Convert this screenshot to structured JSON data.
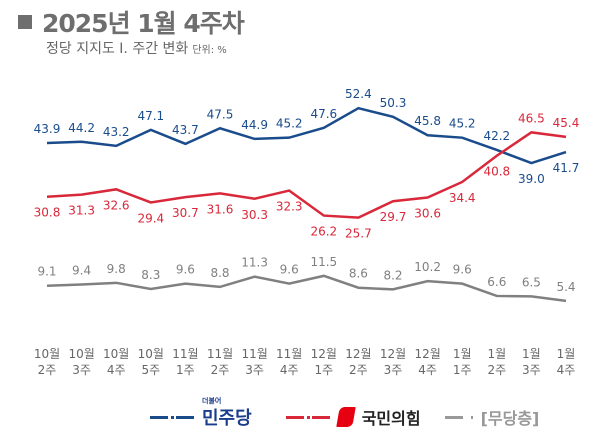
{
  "header": {
    "title": "2025년 1월 4주차",
    "subtitle": "정당 지지도 Ⅰ. 주간 변화",
    "unit": "단위: %"
  },
  "legend": {
    "minjoo": "민주당",
    "minjoo_prefix": "더불어",
    "ppp": "국민의힘",
    "none": "[무당층]"
  },
  "chart_data": {
    "type": "line",
    "title": "",
    "categories": [
      "10월\n2주",
      "10월\n3주",
      "10월\n4주",
      "10월\n5주",
      "11월\n1주",
      "11월\n2주",
      "11월\n3주",
      "11월\n4주",
      "12월\n1주",
      "12월\n2주",
      "12월\n3주",
      "12월\n4주",
      "1월\n1주",
      "1월\n2주",
      "1월\n3주",
      "1월\n4주"
    ],
    "series": [
      {
        "name": "더불어민주당",
        "color": "#1a4c8c",
        "values": [
          43.9,
          44.2,
          43.2,
          47.1,
          43.7,
          47.5,
          44.9,
          45.2,
          47.6,
          52.4,
          50.3,
          45.8,
          45.2,
          42.2,
          39.0,
          41.7
        ]
      },
      {
        "name": "국민의힘",
        "color": "#d8283a",
        "values": [
          30.8,
          31.3,
          32.6,
          29.4,
          30.7,
          31.6,
          30.3,
          32.3,
          26.2,
          25.7,
          29.7,
          30.6,
          34.4,
          40.8,
          46.5,
          45.4
        ]
      },
      {
        "name": "[무당층]",
        "color": "#808080",
        "values": [
          9.1,
          9.4,
          9.8,
          8.3,
          9.6,
          8.8,
          11.3,
          9.6,
          11.5,
          8.6,
          8.2,
          10.2,
          9.6,
          6.6,
          6.5,
          5.4
        ]
      }
    ],
    "grid": false,
    "legend_position": "bottom"
  }
}
